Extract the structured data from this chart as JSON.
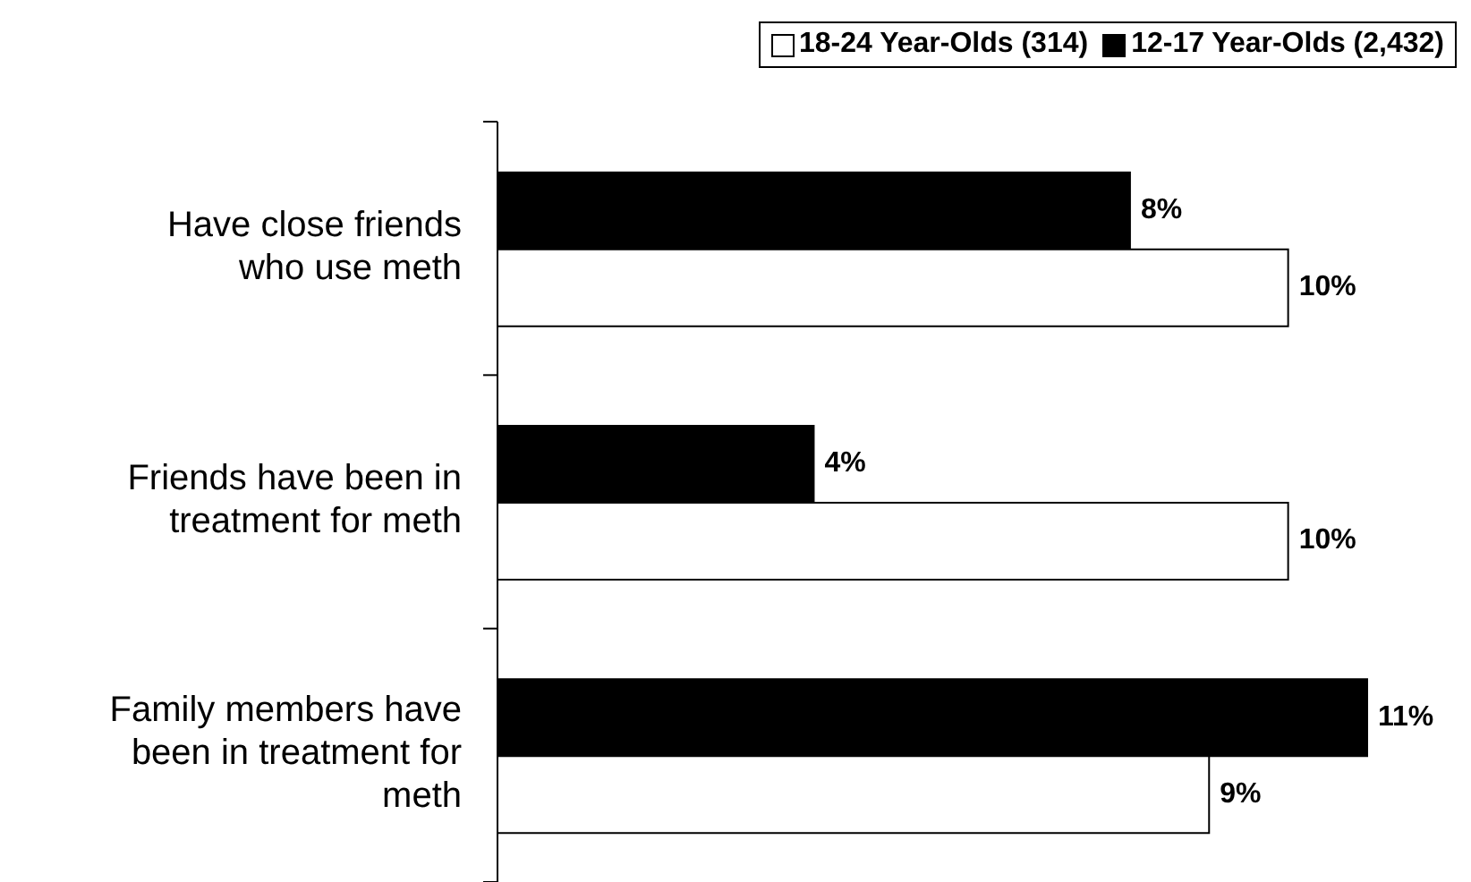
{
  "chart_data": {
    "type": "bar",
    "orientation": "horizontal",
    "categories": [
      "Have close friends who use meth",
      "Friends have been in treatment for meth",
      "Family members have been in treatment for meth"
    ],
    "series": [
      {
        "name": "18-24 Year-Olds (314)",
        "color": "#ffffff",
        "values": [
          10,
          10,
          9
        ],
        "value_labels": [
          "10%",
          "10%",
          "9%"
        ]
      },
      {
        "name": "12-17 Year-Olds (2,432)",
        "color": "#000000",
        "values": [
          8,
          4,
          11
        ],
        "value_labels": [
          "8%",
          "4%",
          "11%"
        ]
      }
    ],
    "legend": "top right"
  }
}
